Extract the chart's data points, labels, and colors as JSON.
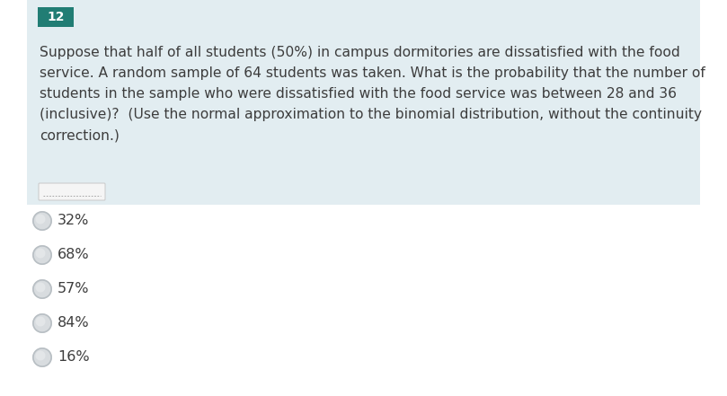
{
  "question_number": "12",
  "question_number_bg": "#217d74",
  "question_number_color": "#ffffff",
  "question_bg": "#e2edf1",
  "question_text_line1": "Suppose that half of all students (50%) in campus dormitories are dissatisfied with the food",
  "question_text_line2": "service. A random sample of 64 students was taken. What is the probability that the number of",
  "question_text_line3": "students in the sample who were dissatisfied with the food service was between 28 and 36",
  "question_text_line4": "(inclusive)?  (Use the normal approximation to the binomial distribution, without the continuity",
  "question_text_line5": "correction.)",
  "choices": [
    "32%",
    "68%",
    "57%",
    "84%",
    "16%"
  ],
  "radio_border_color": "#b8bfc4",
  "radio_fill_color": "#d8dcdf",
  "text_color": "#3d3d3d",
  "bg_color": "#ffffff",
  "font_size_question": 11.2,
  "font_size_choices": 11.5,
  "font_size_number": 10
}
